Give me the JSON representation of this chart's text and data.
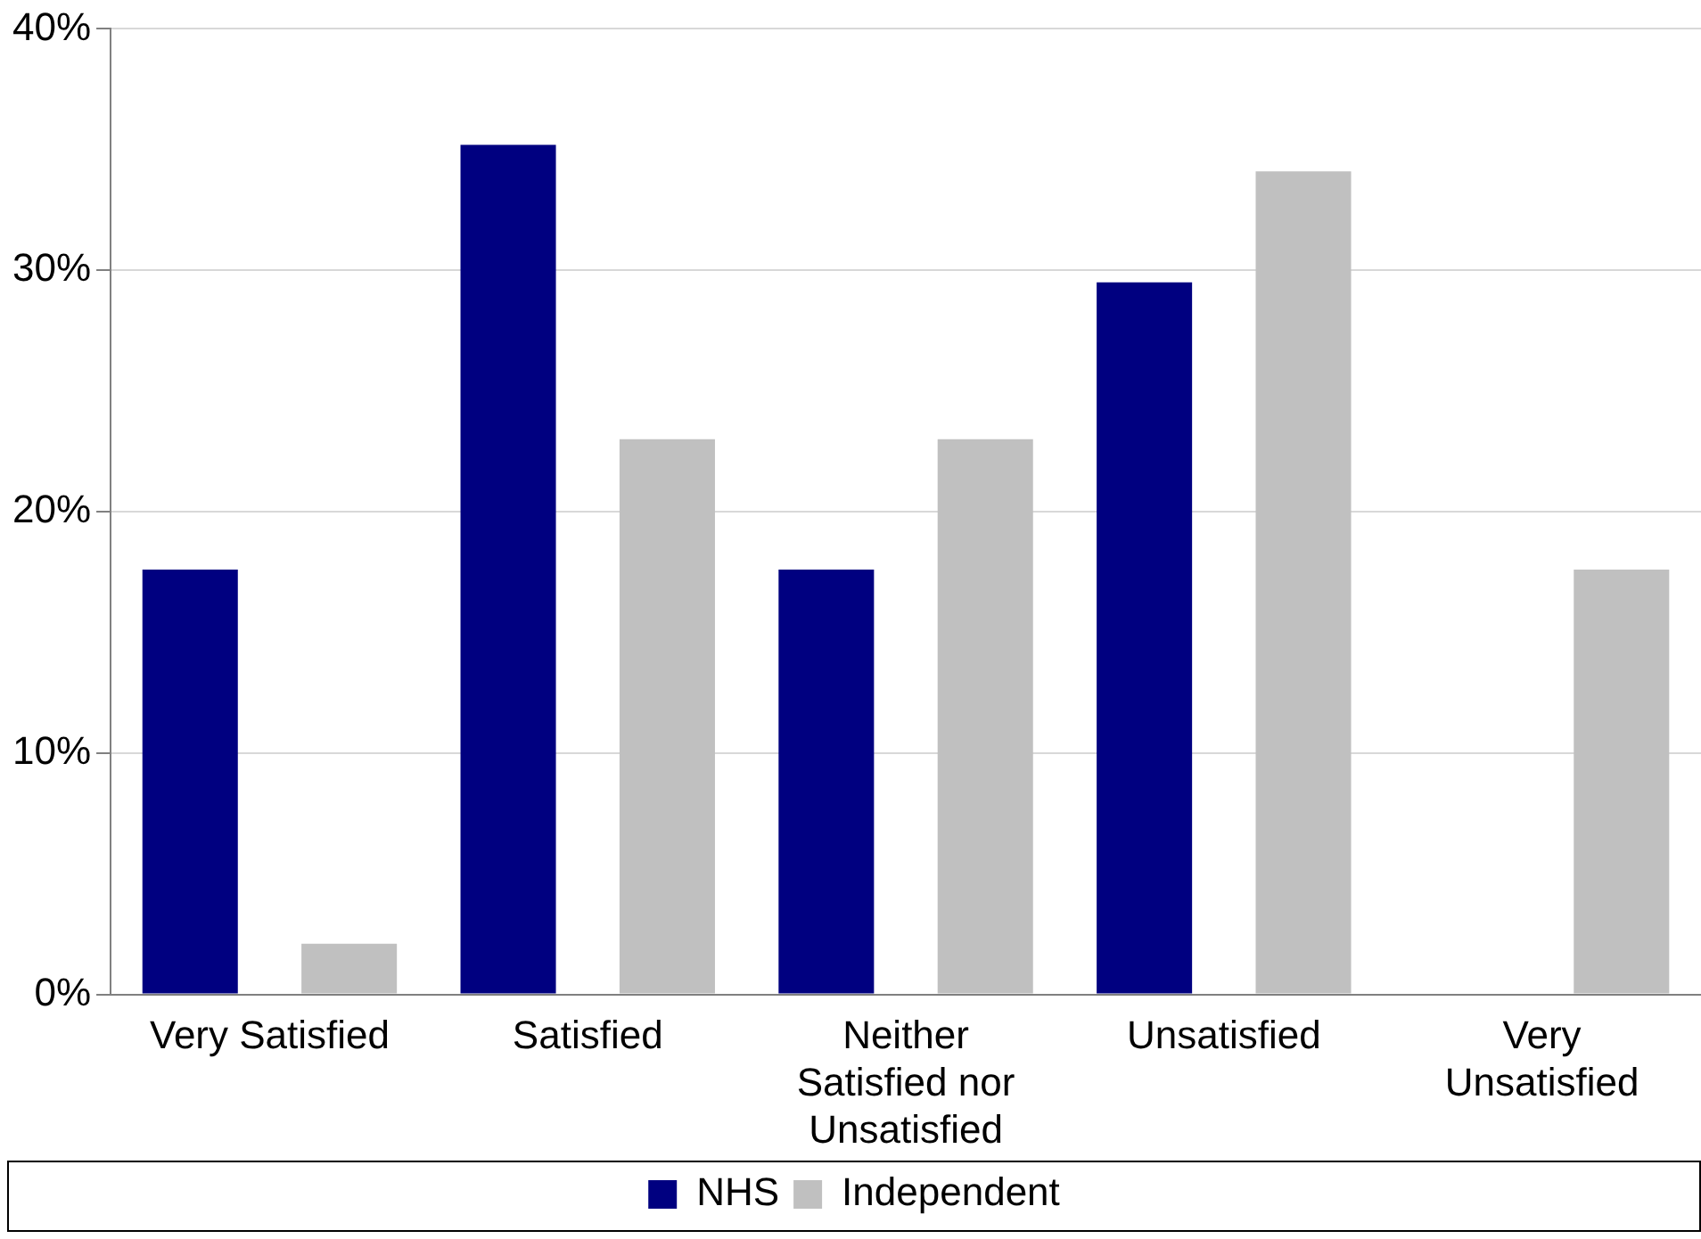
{
  "chart_data": {
    "type": "bar",
    "categories": [
      "Very Satisfied",
      "Satisfied",
      "Neither Satisfied nor Unsatisfied",
      "Unsatisfied",
      "Very Unsatisfied"
    ],
    "series": [
      {
        "name": "NHS",
        "color": "#000080",
        "values": [
          17.6,
          35.2,
          17.6,
          29.5,
          0
        ]
      },
      {
        "name": "Independent",
        "color": "#c0c0c0",
        "values": [
          2.1,
          23.0,
          23.0,
          34.1,
          17.6
        ]
      }
    ],
    "ylim": [
      0,
      40
    ],
    "yticks": [
      {
        "value": 0,
        "label": "0%"
      },
      {
        "value": 10,
        "label": "10%"
      },
      {
        "value": 20,
        "label": "20%"
      },
      {
        "value": 30,
        "label": "30%"
      },
      {
        "value": 40,
        "label": "40%"
      }
    ],
    "grid": "y",
    "legend": "bottom"
  }
}
